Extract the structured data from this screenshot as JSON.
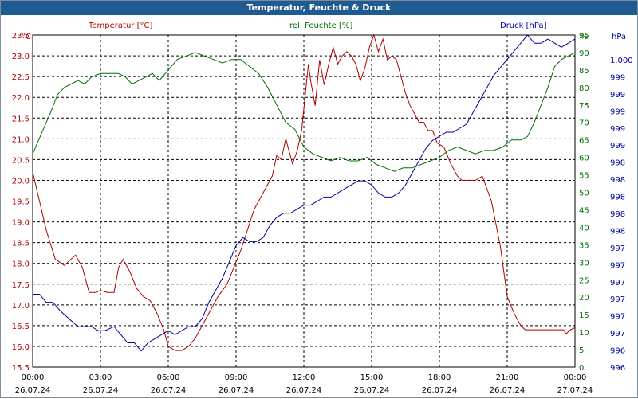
{
  "window": {
    "title": "Temperatur, Feuchte & Druck"
  },
  "colors": {
    "temperature": "#b00000",
    "humidity": "#007000",
    "pressure": "#00009c",
    "grid": "#000000",
    "titlebar": "#1f5a91"
  },
  "chart_data": {
    "type": "line",
    "title": "Temperatur, Feuchte & Druck",
    "axes": {
      "left": {
        "label": "Temperatur [°C]",
        "unit": "°C",
        "ylim": [
          15.5,
          23.5
        ],
        "ticks": [
          "15.5",
          "16.0",
          "16.5",
          "17.0",
          "17.5",
          "18.0",
          "18.5",
          "19.0",
          "19.5",
          "20.0",
          "20.5",
          "21.0",
          "21.5",
          "22.0",
          "22.5",
          "23.0",
          "23.5"
        ]
      },
      "humidity": {
        "label": "rel. Feuchte [%]",
        "unit": "%",
        "ylim": [
          0,
          95
        ],
        "ticks": [
          "0",
          "5",
          "10",
          "15",
          "20",
          "25",
          "30",
          "35",
          "40",
          "45",
          "50",
          "55",
          "60",
          "65",
          "70",
          "75",
          "80",
          "85",
          "90",
          "95"
        ]
      },
      "pressure": {
        "label": "Druck [hPa]",
        "unit": "hPa",
        "ylim": [
          996,
          1000.1
        ],
        "ticks": [
          "996",
          "996",
          "997",
          "997",
          "997",
          "997",
          "997",
          "997",
          "998",
          "998",
          "998",
          "998",
          "998",
          "999",
          "999",
          "999",
          "999",
          "999",
          "1.000"
        ]
      }
    },
    "x": {
      "ticks": [
        {
          "time": "00:00",
          "date": "26.07.24"
        },
        {
          "time": "03:00",
          "date": "26.07.24"
        },
        {
          "time": "06:00",
          "date": "26.07.24"
        },
        {
          "time": "09:00",
          "date": "26.07.24"
        },
        {
          "time": "12:00",
          "date": "26.07.24"
        },
        {
          "time": "15:00",
          "date": "26.07.24"
        },
        {
          "time": "18:00",
          "date": "26.07.24"
        },
        {
          "time": "21:00",
          "date": "26.07.24"
        },
        {
          "time": "00:00",
          "date": "27.07.24"
        }
      ],
      "range_hours": [
        0,
        24
      ]
    },
    "series": [
      {
        "name": "Temperatur [°C]",
        "axis": "left",
        "x": [
          0,
          0.3,
          0.6,
          1,
          1.4,
          1.9,
          2.2,
          2.5,
          2.8,
          3.0,
          3.3,
          3.6,
          3.8,
          4.0,
          4.3,
          4.6,
          4.9,
          5.2,
          5.5,
          5.8,
          6.0,
          6.3,
          6.6,
          6.9,
          7.2,
          7.5,
          7.8,
          8.2,
          8.6,
          8.9,
          9.2,
          9.5,
          9.8,
          10.2,
          10.6,
          10.8,
          11.0,
          11.2,
          11.5,
          11.7,
          11.9,
          12.2,
          12.3,
          12.5,
          12.7,
          12.9,
          13.1,
          13.3,
          13.5,
          13.7,
          13.9,
          14.1,
          14.3,
          14.5,
          14.7,
          14.9,
          15.1,
          15.3,
          15.5,
          15.7,
          15.9,
          16.1,
          16.3,
          16.5,
          16.7,
          16.9,
          17.1,
          17.3,
          17.5,
          17.7,
          17.9,
          18.2,
          18.5,
          18.8,
          19.0,
          19.3,
          19.6,
          19.9,
          20.3,
          20.7,
          21.0,
          21.3,
          21.6,
          21.8,
          22.0,
          22.3,
          22.6,
          22.9,
          23.2,
          23.5,
          23.6,
          23.8,
          24.0
        ],
        "values": [
          20.2,
          19.5,
          18.8,
          18.1,
          17.95,
          18.2,
          17.9,
          17.3,
          17.3,
          17.35,
          17.3,
          17.3,
          17.9,
          18.1,
          17.8,
          17.4,
          17.2,
          17.1,
          16.8,
          16.4,
          16.0,
          15.9,
          15.9,
          16.0,
          16.2,
          16.5,
          16.8,
          17.2,
          17.5,
          17.9,
          18.3,
          18.8,
          19.3,
          19.7,
          20.1,
          20.6,
          20.5,
          21.0,
          20.4,
          20.7,
          21.2,
          22.8,
          22.4,
          21.8,
          22.9,
          22.3,
          22.8,
          23.2,
          22.8,
          23.0,
          23.1,
          23.0,
          22.8,
          22.4,
          22.7,
          23.2,
          23.5,
          23.1,
          23.4,
          22.9,
          23.0,
          22.9,
          22.5,
          22.1,
          21.8,
          21.6,
          21.4,
          21.4,
          21.2,
          21.2,
          20.9,
          20.8,
          20.4,
          20.1,
          20.0,
          20.0,
          20.0,
          20.1,
          19.5,
          18.4,
          17.2,
          16.8,
          16.5,
          16.4,
          16.4,
          16.4,
          16.4,
          16.4,
          16.4,
          16.4,
          16.3,
          16.4,
          16.45
        ]
      },
      {
        "name": "rel. Feuchte [%]",
        "axis": "humidity",
        "x": [
          0,
          0.4,
          0.8,
          1.1,
          1.4,
          1.7,
          2.0,
          2.3,
          2.6,
          3.0,
          3.4,
          3.8,
          4.1,
          4.4,
          4.7,
          5.0,
          5.3,
          5.6,
          6.0,
          6.4,
          6.8,
          7.2,
          7.6,
          8.0,
          8.4,
          8.8,
          9.2,
          9.6,
          10.0,
          10.4,
          10.8,
          11.2,
          11.6,
          12.0,
          12.4,
          12.8,
          13.2,
          13.6,
          14.0,
          14.4,
          14.8,
          15.2,
          15.6,
          16.0,
          16.4,
          16.8,
          17.2,
          17.6,
          18.0,
          18.4,
          18.8,
          19.2,
          19.6,
          20.0,
          20.4,
          20.8,
          21.2,
          21.6,
          21.9,
          22.2,
          22.5,
          22.8,
          23.1,
          23.4,
          23.7,
          24.0
        ],
        "values": [
          61,
          67,
          73,
          78,
          80,
          81,
          82,
          81,
          83,
          84,
          84,
          84,
          83,
          81,
          82,
          83,
          84,
          82,
          85,
          88,
          89,
          90,
          89,
          88,
          87,
          88,
          88,
          86,
          84,
          80,
          75,
          70,
          68,
          63,
          61,
          60,
          59,
          60,
          59,
          59,
          60,
          58,
          57,
          56,
          57,
          57,
          58,
          59,
          60,
          62,
          63,
          62,
          61,
          62,
          62,
          63,
          65,
          65,
          66,
          70,
          75,
          80,
          86,
          88,
          89,
          90
        ]
      },
      {
        "name": "Druck [hPa]",
        "axis": "pressure",
        "x": [
          0,
          0.3,
          0.6,
          0.9,
          1.2,
          1.6,
          2.0,
          2.3,
          2.6,
          2.9,
          3.2,
          3.6,
          3.9,
          4.2,
          4.5,
          4.8,
          5.1,
          5.4,
          5.7,
          6.0,
          6.3,
          6.6,
          6.9,
          7.2,
          7.5,
          7.8,
          8.1,
          8.4,
          8.7,
          9.0,
          9.3,
          9.6,
          9.9,
          10.2,
          10.5,
          10.8,
          11.1,
          11.4,
          11.7,
          12.0,
          12.3,
          12.6,
          12.9,
          13.2,
          13.5,
          13.8,
          14.1,
          14.4,
          14.7,
          15.0,
          15.3,
          15.6,
          15.9,
          16.2,
          16.5,
          16.8,
          17.1,
          17.4,
          17.7,
          18.0,
          18.3,
          18.6,
          18.9,
          19.2,
          19.5,
          19.8,
          20.1,
          20.4,
          20.7,
          21.0,
          21.3,
          21.6,
          21.9,
          22.2,
          22.5,
          22.8,
          23.1,
          23.4,
          23.7,
          24.0
        ],
        "values": [
          996.9,
          996.9,
          996.8,
          996.8,
          996.7,
          996.6,
          996.5,
          996.5,
          996.5,
          996.45,
          996.45,
          996.5,
          996.4,
          996.3,
          996.3,
          996.2,
          996.3,
          996.35,
          996.4,
          996.45,
          996.4,
          996.45,
          996.5,
          996.5,
          996.6,
          996.8,
          996.95,
          997.1,
          997.3,
          997.5,
          997.6,
          997.55,
          997.55,
          997.6,
          997.75,
          997.85,
          997.9,
          997.9,
          997.95,
          998.0,
          998.0,
          998.05,
          998.1,
          998.1,
          998.15,
          998.2,
          998.25,
          998.3,
          998.3,
          998.25,
          998.15,
          998.1,
          998.1,
          998.15,
          998.25,
          998.4,
          998.55,
          998.7,
          998.8,
          998.85,
          998.9,
          998.9,
          998.95,
          999.0,
          999.15,
          999.3,
          999.45,
          999.6,
          999.7,
          999.8,
          999.9,
          1000.0,
          1000.1,
          1000.0,
          1000.0,
          1000.05,
          1000.0,
          999.95,
          1000.0,
          1000.05
        ]
      }
    ],
    "legend": [
      "Temperatur [°C]",
      "rel. Feuchte [%]",
      "Druck [hPa]"
    ],
    "grid": true
  }
}
